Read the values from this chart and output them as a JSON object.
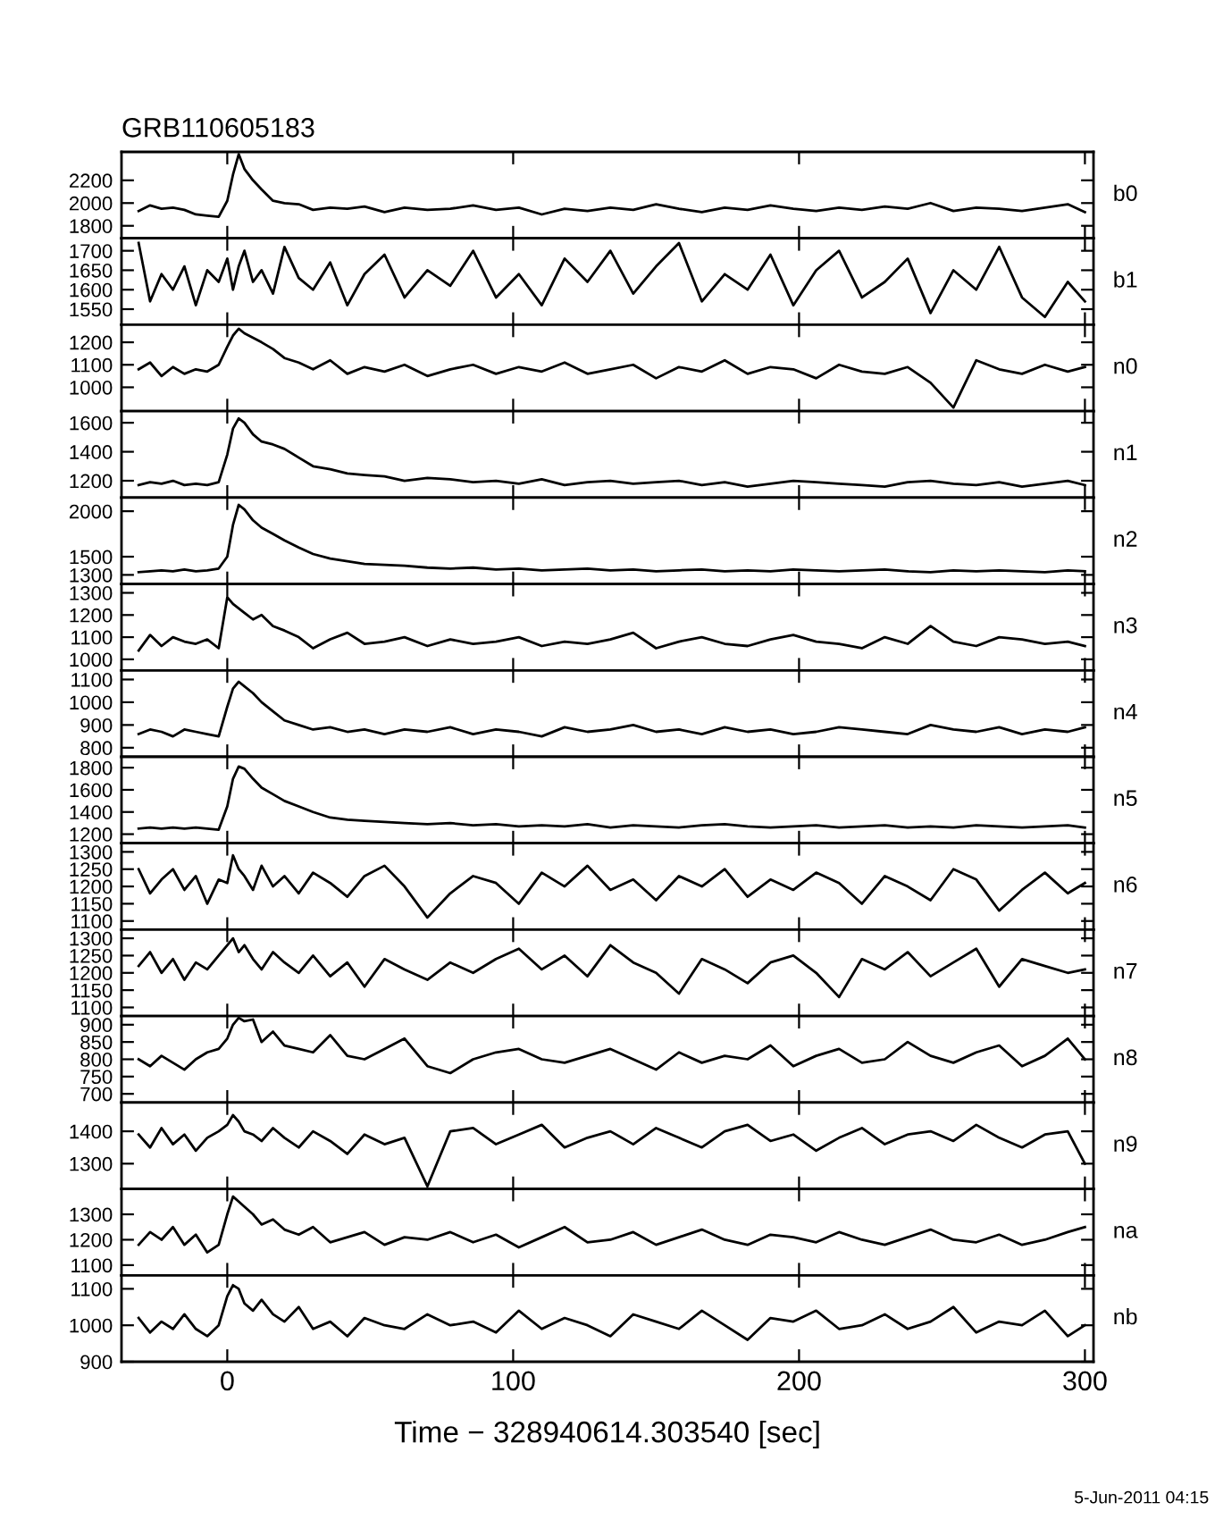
{
  "chart_data": [
    {
      "type": "line",
      "title": "GRB110605183",
      "tick_labels": "y",
      "xlim": [
        -37,
        303
      ],
      "xticks": [
        0,
        100,
        200,
        300
      ],
      "ylim": [
        1690,
        2450
      ],
      "yticks": [
        1800,
        2000,
        2200
      ],
      "x": [
        -31,
        -27,
        -23,
        -19,
        -15,
        -11,
        -7,
        -3,
        0,
        2,
        4,
        6,
        9,
        12,
        16,
        20,
        25,
        30,
        36,
        42,
        48,
        55,
        62,
        70,
        78,
        86,
        94,
        102,
        110,
        118,
        126,
        134,
        142,
        150,
        158,
        166,
        174,
        182,
        190,
        198,
        206,
        214,
        222,
        230,
        238,
        246,
        254,
        262,
        270,
        278,
        286,
        294,
        300
      ],
      "series": [
        {
          "name": "b0",
          "color": "#000000",
          "values": [
            1930,
            1980,
            1950,
            1960,
            1940,
            1900,
            1890,
            1880,
            2020,
            2250,
            2430,
            2300,
            2200,
            2120,
            2020,
            2000,
            1990,
            1940,
            1960,
            1950,
            1970,
            1920,
            1960,
            1940,
            1950,
            1980,
            1940,
            1960,
            1900,
            1950,
            1930,
            1960,
            1940,
            1990,
            1950,
            1920,
            1960,
            1940,
            1980,
            1950,
            1930,
            1960,
            1940,
            1970,
            1950,
            2000,
            1930,
            1960,
            1950,
            1930,
            1960,
            1990,
            1920
          ]
        }
      ]
    },
    {
      "type": "line",
      "tick_labels": "y",
      "xlim": [
        -37,
        303
      ],
      "xticks": [
        0,
        100,
        200,
        300
      ],
      "ylim": [
        1510,
        1732
      ],
      "yticks": [
        1550,
        1600,
        1650,
        1700
      ],
      "x": [
        -31,
        -27,
        -23,
        -19,
        -15,
        -11,
        -7,
        -3,
        0,
        2,
        4,
        6,
        9,
        12,
        16,
        20,
        25,
        30,
        36,
        42,
        48,
        55,
        62,
        70,
        78,
        86,
        94,
        102,
        110,
        118,
        126,
        134,
        142,
        150,
        158,
        166,
        174,
        182,
        190,
        198,
        206,
        214,
        222,
        230,
        238,
        246,
        254,
        262,
        270,
        278,
        286,
        294,
        300
      ],
      "series": [
        {
          "name": "b1",
          "color": "#000000",
          "values": [
            1720,
            1570,
            1640,
            1600,
            1660,
            1560,
            1650,
            1620,
            1680,
            1600,
            1660,
            1700,
            1620,
            1650,
            1590,
            1710,
            1630,
            1600,
            1670,
            1560,
            1640,
            1690,
            1580,
            1650,
            1610,
            1700,
            1580,
            1640,
            1560,
            1680,
            1620,
            1700,
            1590,
            1660,
            1720,
            1570,
            1640,
            1600,
            1690,
            1560,
            1650,
            1700,
            1580,
            1620,
            1680,
            1540,
            1650,
            1600,
            1710,
            1580,
            1530,
            1620,
            1570
          ]
        }
      ]
    },
    {
      "type": "line",
      "tick_labels": "y",
      "xlim": [
        -37,
        303
      ],
      "xticks": [
        0,
        100,
        200,
        300
      ],
      "ylim": [
        894,
        1278
      ],
      "yticks": [
        1000,
        1100,
        1200
      ],
      "x": [
        -31,
        -27,
        -23,
        -19,
        -15,
        -11,
        -7,
        -3,
        0,
        2,
        4,
        6,
        9,
        12,
        16,
        20,
        25,
        30,
        36,
        42,
        48,
        55,
        62,
        70,
        78,
        86,
        94,
        102,
        110,
        118,
        126,
        134,
        142,
        150,
        158,
        166,
        174,
        182,
        190,
        198,
        206,
        214,
        222,
        230,
        238,
        246,
        254,
        262,
        270,
        278,
        286,
        294,
        300
      ],
      "series": [
        {
          "name": "n0",
          "color": "#000000",
          "values": [
            1080,
            1110,
            1050,
            1090,
            1060,
            1080,
            1070,
            1100,
            1180,
            1230,
            1260,
            1240,
            1220,
            1200,
            1170,
            1130,
            1110,
            1080,
            1120,
            1060,
            1090,
            1070,
            1100,
            1050,
            1080,
            1100,
            1060,
            1090,
            1070,
            1110,
            1060,
            1080,
            1100,
            1040,
            1090,
            1070,
            1120,
            1060,
            1090,
            1080,
            1040,
            1100,
            1070,
            1060,
            1090,
            1020,
            910,
            1120,
            1080,
            1060,
            1100,
            1070,
            1090
          ]
        }
      ]
    },
    {
      "type": "line",
      "tick_labels": "y",
      "xlim": [
        -37,
        303
      ],
      "xticks": [
        0,
        100,
        200,
        300
      ],
      "ylim": [
        1084,
        1680
      ],
      "yticks": [
        1200,
        1400,
        1600
      ],
      "x": [
        -31,
        -27,
        -23,
        -19,
        -15,
        -11,
        -7,
        -3,
        0,
        2,
        4,
        6,
        9,
        12,
        16,
        20,
        25,
        30,
        36,
        42,
        48,
        55,
        62,
        70,
        78,
        86,
        94,
        102,
        110,
        118,
        126,
        134,
        142,
        150,
        158,
        166,
        174,
        182,
        190,
        198,
        206,
        214,
        222,
        230,
        238,
        246,
        254,
        262,
        270,
        278,
        286,
        294,
        300
      ],
      "series": [
        {
          "name": "n1",
          "color": "#000000",
          "values": [
            1170,
            1190,
            1180,
            1200,
            1170,
            1180,
            1170,
            1190,
            1380,
            1560,
            1630,
            1600,
            1520,
            1470,
            1450,
            1420,
            1360,
            1300,
            1280,
            1250,
            1240,
            1230,
            1200,
            1220,
            1210,
            1190,
            1200,
            1180,
            1210,
            1170,
            1190,
            1200,
            1180,
            1190,
            1200,
            1170,
            1190,
            1160,
            1180,
            1200,
            1190,
            1180,
            1170,
            1160,
            1190,
            1200,
            1180,
            1170,
            1190,
            1160,
            1180,
            1200,
            1170
          ]
        }
      ]
    },
    {
      "type": "line",
      "tick_labels": "y",
      "xlim": [
        -37,
        303
      ],
      "xticks": [
        0,
        100,
        200,
        300
      ],
      "ylim": [
        1200,
        2150
      ],
      "yticks": [
        1300,
        1500,
        2000
      ],
      "x": [
        -31,
        -27,
        -23,
        -19,
        -15,
        -11,
        -7,
        -3,
        0,
        2,
        4,
        6,
        9,
        12,
        16,
        20,
        25,
        30,
        36,
        42,
        48,
        55,
        62,
        70,
        78,
        86,
        94,
        102,
        110,
        118,
        126,
        134,
        142,
        150,
        158,
        166,
        174,
        182,
        190,
        198,
        206,
        214,
        222,
        230,
        238,
        246,
        254,
        262,
        270,
        278,
        286,
        294,
        300
      ],
      "series": [
        {
          "name": "n2",
          "color": "#000000",
          "values": [
            1330,
            1340,
            1350,
            1340,
            1360,
            1340,
            1350,
            1370,
            1500,
            1850,
            2070,
            2020,
            1900,
            1820,
            1750,
            1680,
            1600,
            1530,
            1480,
            1450,
            1420,
            1410,
            1400,
            1380,
            1370,
            1380,
            1360,
            1370,
            1350,
            1360,
            1370,
            1350,
            1360,
            1340,
            1350,
            1360,
            1340,
            1350,
            1340,
            1360,
            1350,
            1340,
            1350,
            1360,
            1340,
            1330,
            1350,
            1340,
            1350,
            1340,
            1330,
            1350,
            1340
          ]
        }
      ]
    },
    {
      "type": "line",
      "tick_labels": "y",
      "xlim": [
        -37,
        303
      ],
      "xticks": [
        0,
        100,
        200,
        300
      ],
      "ylim": [
        950,
        1340
      ],
      "yticks": [
        1000,
        1100,
        1200,
        1300
      ],
      "x": [
        -31,
        -27,
        -23,
        -19,
        -15,
        -11,
        -7,
        -3,
        0,
        2,
        4,
        6,
        9,
        12,
        16,
        20,
        25,
        30,
        36,
        42,
        48,
        55,
        62,
        70,
        78,
        86,
        94,
        102,
        110,
        118,
        126,
        134,
        142,
        150,
        158,
        166,
        174,
        182,
        190,
        198,
        206,
        214,
        222,
        230,
        238,
        246,
        254,
        262,
        270,
        278,
        286,
        294,
        300
      ],
      "series": [
        {
          "name": "n3",
          "color": "#000000",
          "values": [
            1040,
            1110,
            1060,
            1100,
            1080,
            1070,
            1090,
            1050,
            1280,
            1250,
            1230,
            1210,
            1180,
            1200,
            1150,
            1130,
            1100,
            1050,
            1090,
            1120,
            1070,
            1080,
            1100,
            1060,
            1090,
            1070,
            1080,
            1100,
            1060,
            1080,
            1070,
            1090,
            1120,
            1050,
            1080,
            1100,
            1070,
            1060,
            1090,
            1110,
            1080,
            1070,
            1050,
            1100,
            1070,
            1150,
            1080,
            1060,
            1100,
            1090,
            1070,
            1080,
            1060
          ]
        }
      ]
    },
    {
      "type": "line",
      "tick_labels": "y",
      "xlim": [
        -37,
        303
      ],
      "xticks": [
        0,
        100,
        200,
        300
      ],
      "ylim": [
        760,
        1140
      ],
      "yticks": [
        800,
        900,
        1000,
        1100
      ],
      "x": [
        -31,
        -27,
        -23,
        -19,
        -15,
        -11,
        -7,
        -3,
        0,
        2,
        4,
        6,
        9,
        12,
        16,
        20,
        25,
        30,
        36,
        42,
        48,
        55,
        62,
        70,
        78,
        86,
        94,
        102,
        110,
        118,
        126,
        134,
        142,
        150,
        158,
        166,
        174,
        182,
        190,
        198,
        206,
        214,
        222,
        230,
        238,
        246,
        254,
        262,
        270,
        278,
        286,
        294,
        300
      ],
      "series": [
        {
          "name": "n4",
          "color": "#000000",
          "values": [
            860,
            880,
            870,
            850,
            880,
            870,
            860,
            850,
            980,
            1060,
            1090,
            1070,
            1040,
            1000,
            960,
            920,
            900,
            880,
            890,
            870,
            880,
            860,
            880,
            870,
            890,
            860,
            880,
            870,
            850,
            890,
            870,
            880,
            900,
            870,
            880,
            860,
            890,
            870,
            880,
            860,
            870,
            890,
            880,
            870,
            860,
            900,
            880,
            870,
            890,
            860,
            880,
            870,
            890
          ]
        }
      ]
    },
    {
      "type": "line",
      "tick_labels": "y",
      "xlim": [
        -37,
        303
      ],
      "xticks": [
        0,
        100,
        200,
        300
      ],
      "ylim": [
        1118,
        1898
      ],
      "yticks": [
        1200,
        1400,
        1600,
        1800
      ],
      "x": [
        -31,
        -27,
        -23,
        -19,
        -15,
        -11,
        -7,
        -3,
        0,
        2,
        4,
        6,
        9,
        12,
        16,
        20,
        25,
        30,
        36,
        42,
        48,
        55,
        62,
        70,
        78,
        86,
        94,
        102,
        110,
        118,
        126,
        134,
        142,
        150,
        158,
        166,
        174,
        182,
        190,
        198,
        206,
        214,
        222,
        230,
        238,
        246,
        254,
        262,
        270,
        278,
        286,
        294,
        300
      ],
      "series": [
        {
          "name": "n5",
          "color": "#000000",
          "values": [
            1250,
            1260,
            1250,
            1260,
            1250,
            1260,
            1250,
            1240,
            1450,
            1700,
            1810,
            1790,
            1700,
            1620,
            1560,
            1500,
            1450,
            1400,
            1350,
            1330,
            1320,
            1310,
            1300,
            1290,
            1300,
            1280,
            1290,
            1270,
            1280,
            1270,
            1290,
            1260,
            1280,
            1270,
            1260,
            1280,
            1290,
            1270,
            1260,
            1270,
            1280,
            1260,
            1270,
            1280,
            1260,
            1270,
            1260,
            1280,
            1270,
            1260,
            1270,
            1280,
            1260
          ]
        }
      ]
    },
    {
      "type": "line",
      "tick_labels": "y",
      "xlim": [
        -37,
        303
      ],
      "xticks": [
        0,
        100,
        200,
        300
      ],
      "ylim": [
        1075,
        1325
      ],
      "yticks": [
        1100,
        1150,
        1200,
        1250,
        1300
      ],
      "x": [
        -31,
        -27,
        -23,
        -19,
        -15,
        -11,
        -7,
        -3,
        0,
        2,
        4,
        6,
        9,
        12,
        16,
        20,
        25,
        30,
        36,
        42,
        48,
        55,
        62,
        70,
        78,
        86,
        94,
        102,
        110,
        118,
        126,
        134,
        142,
        150,
        158,
        166,
        174,
        182,
        190,
        198,
        206,
        214,
        222,
        230,
        238,
        246,
        254,
        262,
        270,
        278,
        286,
        294,
        300
      ],
      "series": [
        {
          "name": "n6",
          "color": "#000000",
          "values": [
            1250,
            1180,
            1220,
            1250,
            1190,
            1230,
            1150,
            1220,
            1210,
            1290,
            1250,
            1230,
            1190,
            1260,
            1200,
            1230,
            1180,
            1240,
            1210,
            1170,
            1230,
            1260,
            1200,
            1110,
            1180,
            1230,
            1210,
            1150,
            1240,
            1200,
            1260,
            1190,
            1220,
            1160,
            1230,
            1200,
            1250,
            1170,
            1220,
            1190,
            1240,
            1210,
            1150,
            1230,
            1200,
            1160,
            1250,
            1220,
            1130,
            1190,
            1240,
            1180,
            1210
          ]
        }
      ]
    },
    {
      "type": "line",
      "tick_labels": "y",
      "xlim": [
        -37,
        303
      ],
      "xticks": [
        0,
        100,
        200,
        300
      ],
      "ylim": [
        1075,
        1325
      ],
      "yticks": [
        1100,
        1150,
        1200,
        1250,
        1300
      ],
      "x": [
        -31,
        -27,
        -23,
        -19,
        -15,
        -11,
        -7,
        -3,
        0,
        2,
        4,
        6,
        9,
        12,
        16,
        20,
        25,
        30,
        36,
        42,
        48,
        55,
        62,
        70,
        78,
        86,
        94,
        102,
        110,
        118,
        126,
        134,
        142,
        150,
        158,
        166,
        174,
        182,
        190,
        198,
        206,
        214,
        222,
        230,
        238,
        246,
        254,
        262,
        270,
        278,
        286,
        294,
        300
      ],
      "series": [
        {
          "name": "n7",
          "color": "#000000",
          "values": [
            1220,
            1260,
            1200,
            1240,
            1180,
            1230,
            1210,
            1250,
            1280,
            1300,
            1260,
            1280,
            1240,
            1210,
            1260,
            1230,
            1200,
            1250,
            1190,
            1230,
            1160,
            1240,
            1210,
            1180,
            1230,
            1200,
            1240,
            1270,
            1210,
            1250,
            1190,
            1280,
            1230,
            1200,
            1140,
            1240,
            1210,
            1170,
            1230,
            1250,
            1200,
            1130,
            1240,
            1210,
            1260,
            1190,
            1230,
            1270,
            1160,
            1240,
            1220,
            1200,
            1210
          ]
        }
      ]
    },
    {
      "type": "line",
      "tick_labels": "y",
      "xlim": [
        -37,
        303
      ],
      "xticks": [
        0,
        100,
        200,
        300
      ],
      "ylim": [
        675,
        925
      ],
      "yticks": [
        700,
        750,
        800,
        850,
        900
      ],
      "x": [
        -31,
        -27,
        -23,
        -19,
        -15,
        -11,
        -7,
        -3,
        0,
        2,
        4,
        6,
        9,
        12,
        16,
        20,
        25,
        30,
        36,
        42,
        48,
        55,
        62,
        70,
        78,
        86,
        94,
        102,
        110,
        118,
        126,
        134,
        142,
        150,
        158,
        166,
        174,
        182,
        190,
        198,
        206,
        214,
        222,
        230,
        238,
        246,
        254,
        262,
        270,
        278,
        286,
        294,
        300
      ],
      "series": [
        {
          "name": "n8",
          "color": "#000000",
          "values": [
            800,
            780,
            810,
            790,
            770,
            800,
            820,
            830,
            860,
            900,
            920,
            910,
            915,
            850,
            880,
            840,
            830,
            820,
            870,
            810,
            800,
            830,
            860,
            780,
            760,
            800,
            820,
            830,
            800,
            790,
            810,
            830,
            800,
            770,
            820,
            790,
            810,
            800,
            840,
            780,
            810,
            830,
            790,
            800,
            850,
            810,
            790,
            820,
            840,
            780,
            810,
            860,
            800
          ]
        }
      ]
    },
    {
      "type": "line",
      "tick_labels": "y",
      "xlim": [
        -37,
        303
      ],
      "xticks": [
        0,
        100,
        200,
        300
      ],
      "ylim": [
        1222,
        1489
      ],
      "yticks": [
        1300,
        1400
      ],
      "x": [
        -31,
        -27,
        -23,
        -19,
        -15,
        -11,
        -7,
        -3,
        0,
        2,
        4,
        6,
        9,
        12,
        16,
        20,
        25,
        30,
        36,
        42,
        48,
        55,
        62,
        70,
        78,
        86,
        94,
        102,
        110,
        118,
        126,
        134,
        142,
        150,
        158,
        166,
        174,
        182,
        190,
        198,
        206,
        214,
        222,
        230,
        238,
        246,
        254,
        262,
        270,
        278,
        286,
        294,
        300
      ],
      "series": [
        {
          "name": "n9",
          "color": "#000000",
          "values": [
            1390,
            1350,
            1410,
            1360,
            1390,
            1340,
            1380,
            1400,
            1420,
            1450,
            1430,
            1400,
            1390,
            1370,
            1410,
            1380,
            1350,
            1400,
            1370,
            1330,
            1390,
            1360,
            1380,
            1230,
            1400,
            1410,
            1360,
            1390,
            1420,
            1350,
            1380,
            1400,
            1360,
            1410,
            1380,
            1350,
            1400,
            1420,
            1370,
            1390,
            1340,
            1380,
            1410,
            1360,
            1390,
            1400,
            1370,
            1420,
            1380,
            1350,
            1390,
            1400,
            1300
          ]
        }
      ]
    },
    {
      "type": "line",
      "tick_labels": "y",
      "xlim": [
        -37,
        303
      ],
      "xticks": [
        0,
        100,
        200,
        300
      ],
      "ylim": [
        1060,
        1400
      ],
      "yticks": [
        1100,
        1200,
        1300
      ],
      "x": [
        -31,
        -27,
        -23,
        -19,
        -15,
        -11,
        -7,
        -3,
        0,
        2,
        4,
        6,
        9,
        12,
        16,
        20,
        25,
        30,
        36,
        42,
        48,
        55,
        62,
        70,
        78,
        86,
        94,
        102,
        110,
        118,
        126,
        134,
        142,
        150,
        158,
        166,
        174,
        182,
        190,
        198,
        206,
        214,
        222,
        230,
        238,
        246,
        254,
        262,
        270,
        278,
        286,
        294,
        300
      ],
      "series": [
        {
          "name": "na",
          "color": "#000000",
          "values": [
            1180,
            1230,
            1200,
            1250,
            1180,
            1220,
            1150,
            1180,
            1300,
            1370,
            1350,
            1330,
            1300,
            1260,
            1280,
            1240,
            1220,
            1250,
            1190,
            1210,
            1230,
            1180,
            1210,
            1200,
            1230,
            1190,
            1220,
            1170,
            1210,
            1250,
            1190,
            1200,
            1230,
            1180,
            1210,
            1240,
            1200,
            1180,
            1220,
            1210,
            1190,
            1230,
            1200,
            1180,
            1210,
            1240,
            1200,
            1190,
            1220,
            1180,
            1200,
            1230,
            1250
          ]
        }
      ]
    },
    {
      "type": "line",
      "xlabel": "Time − 328940614.303540 [sec]",
      "annotations": [
        "5-Jun-2011 04:15"
      ],
      "xlim": [
        -37,
        303
      ],
      "xticks": [
        0,
        100,
        200,
        300
      ],
      "ylim": [
        900,
        1137
      ],
      "yticks": [
        900,
        1000,
        1100
      ],
      "x": [
        -31,
        -27,
        -23,
        -19,
        -15,
        -11,
        -7,
        -3,
        0,
        2,
        4,
        6,
        9,
        12,
        16,
        20,
        25,
        30,
        36,
        42,
        48,
        55,
        62,
        70,
        78,
        86,
        94,
        102,
        110,
        118,
        126,
        134,
        142,
        150,
        158,
        166,
        174,
        182,
        190,
        198,
        206,
        214,
        222,
        230,
        238,
        246,
        254,
        262,
        270,
        278,
        286,
        294,
        300
      ],
      "series": [
        {
          "name": "nb",
          "color": "#000000",
          "values": [
            1020,
            980,
            1010,
            990,
            1030,
            990,
            970,
            1000,
            1080,
            1110,
            1100,
            1060,
            1040,
            1070,
            1030,
            1010,
            1050,
            990,
            1010,
            970,
            1020,
            1000,
            990,
            1030,
            1000,
            1010,
            980,
            1040,
            990,
            1020,
            1000,
            970,
            1030,
            1010,
            990,
            1040,
            1000,
            960,
            1020,
            1010,
            1040,
            990,
            1000,
            1030,
            990,
            1010,
            1050,
            980,
            1010,
            1000,
            1040,
            970,
            1000
          ]
        }
      ]
    }
  ]
}
